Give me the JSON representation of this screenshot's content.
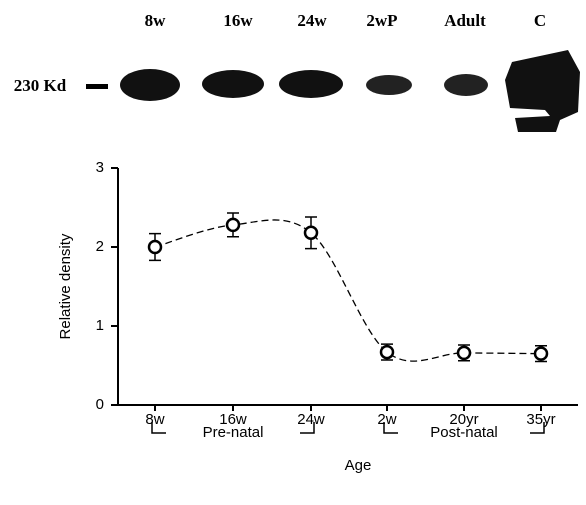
{
  "blot": {
    "lanes": [
      "8w",
      "16w",
      "24w",
      "2wP",
      "Adult",
      "C"
    ],
    "marker": "230 Kd"
  },
  "chart_data": {
    "type": "line",
    "categories": [
      "8w",
      "16w",
      "24w",
      "2w",
      "20yr",
      "35yr"
    ],
    "values": [
      2.0,
      2.28,
      2.18,
      0.67,
      0.66,
      0.65
    ],
    "errors": [
      0.17,
      0.15,
      0.2,
      0.1,
      0.1,
      0.1
    ],
    "ylim": [
      0,
      3
    ],
    "yticks": [
      0,
      1,
      2,
      3
    ],
    "y_label": "Relative density",
    "x_label": "Age",
    "groups": [
      {
        "label": "Pre-natal",
        "from": 0,
        "to": 2
      },
      {
        "label": "Post-natal",
        "from": 3,
        "to": 5
      }
    ],
    "color": "#000000",
    "dashed": true
  }
}
